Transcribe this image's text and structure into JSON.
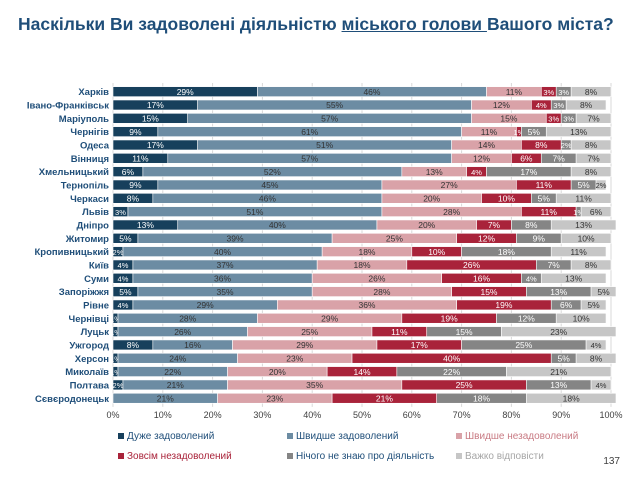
{
  "title": {
    "before": "Наскільки Ви задоволені діяльністю ",
    "underlined": "міського голови ",
    "after": "Вашого міста?"
  },
  "page_number": "137",
  "chart_data": {
    "type": "bar",
    "orientation": "horizontal",
    "stacked": "percent",
    "xlim": [
      0,
      100
    ],
    "x_ticks": [
      "0%",
      "10%",
      "20%",
      "30%",
      "40%",
      "50%",
      "60%",
      "70%",
      "80%",
      "90%",
      "100%"
    ],
    "legend_placement": "bottom",
    "grid": true,
    "categories": [
      "Харків",
      "Івано-Франківськ",
      "Маріуполь",
      "Чернігів",
      "Одеса",
      "Вінниця",
      "Хмельницький",
      "Тернопіль",
      "Черкаси",
      "Львів",
      "Дніпро",
      "Житомир",
      "Кропивницький",
      "Київ",
      "Суми",
      "Запоріжжя",
      "Рівне",
      "Чернівці",
      "Луцьк",
      "Ужгород",
      "Херсон",
      "Миколаїв",
      "Полтава",
      "Сєвєродонецьк"
    ],
    "series": [
      {
        "name": "Дуже задоволений",
        "color": "#17405c",
        "values": [
          29,
          17,
          15,
          9,
          17,
          11,
          6,
          9,
          8,
          3,
          13,
          5,
          2,
          4,
          4,
          5,
          4,
          1,
          1,
          8,
          1,
          1,
          2,
          0
        ]
      },
      {
        "name": "Швидше задоволений",
        "color": "#6c8ca3",
        "values": [
          46,
          55,
          57,
          61,
          51,
          57,
          52,
          45,
          46,
          51,
          40,
          39,
          40,
          37,
          36,
          35,
          29,
          28,
          26,
          16,
          24,
          22,
          21,
          21
        ]
      },
      {
        "name": "Швидше незадоволений",
        "color": "#d9a2a8",
        "values": [
          11,
          12,
          15,
          11,
          14,
          12,
          13,
          27,
          20,
          28,
          20,
          25,
          18,
          18,
          26,
          28,
          36,
          29,
          25,
          29,
          23,
          20,
          35,
          23
        ]
      },
      {
        "name": "Зовсім незадоволений",
        "color": "#a9233a",
        "values": [
          3,
          4,
          3,
          1,
          8,
          6,
          4,
          11,
          10,
          11,
          7,
          12,
          10,
          26,
          16,
          15,
          19,
          19,
          11,
          17,
          40,
          14,
          25,
          21
        ]
      },
      {
        "name": "Нічого не знаю про діяльність",
        "color": "#858585",
        "values": [
          3,
          3,
          3,
          5,
          2,
          7,
          17,
          5,
          5,
          1,
          8,
          9,
          18,
          7,
          4,
          13,
          6,
          12,
          15,
          25,
          5,
          22,
          13,
          18
        ]
      },
      {
        "name": "Важко відповісти",
        "color": "#c6c6c6",
        "values": [
          8,
          8,
          7,
          13,
          8,
          7,
          8,
          2,
          11,
          6,
          13,
          10,
          11,
          8,
          13,
          5,
          5,
          10,
          23,
          4,
          8,
          21,
          4,
          18
        ]
      }
    ]
  }
}
